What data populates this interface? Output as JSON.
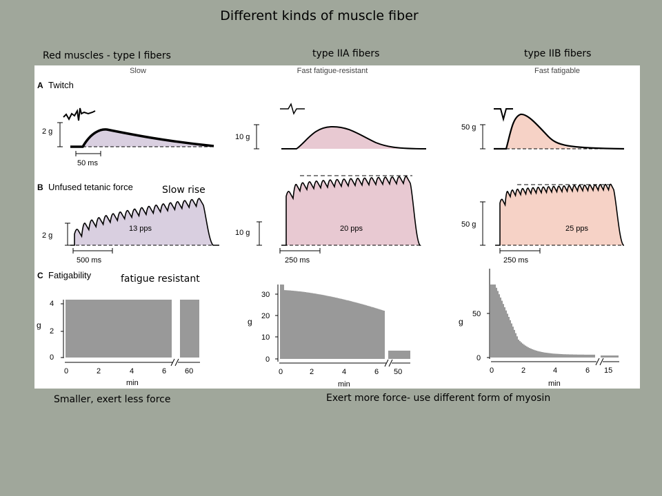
{
  "title": "Different kinds of muscle fiber",
  "headers": {
    "red": "Red muscles - type I fibers",
    "iia": "type IIA fibers",
    "iib": "type IIB fibers"
  },
  "figure": {
    "columns": [
      "Slow",
      "Fast fatigue-resistant",
      "Fast fatigable"
    ],
    "row_labels": [
      "A",
      "Twitch",
      "B",
      "Unfused tetanic force",
      "C",
      "Fatigability"
    ],
    "twitch_scales": [
      "2 g",
      "10 g",
      "50 g"
    ],
    "twitch_time": "50 ms",
    "tetanic_scales": [
      "2 g",
      "10 g",
      "50 g"
    ],
    "tetanic_rates": [
      "13 pps",
      "20 pps",
      "25 pps"
    ],
    "tetanic_times": [
      "500 ms",
      "250 ms",
      "250 ms"
    ],
    "fatigue": {
      "ylabel": "g",
      "xlabel": "min",
      "slow_y_ticks": [
        "4",
        "2",
        "0"
      ],
      "slow_y_extra": [
        "0"
      ],
      "iia_y_ticks": [
        "30",
        "20",
        "10",
        "0"
      ],
      "iib_y_ticks": [
        "50",
        "0"
      ],
      "x_ticks": [
        "0",
        "2",
        "4",
        "6"
      ],
      "slow_late": "60",
      "iia_late": "50",
      "iib_late": "15"
    }
  },
  "colors": {
    "slow_fill": "#d9cfe0",
    "iia_fill": "#e8c9d2",
    "iib_fill": "#f6d2c6"
  },
  "annotations": {
    "slow_rise": "Slow rise",
    "fatigue_resistant": "fatigue resistant",
    "smaller": "Smaller, exert less force",
    "exert_more": "Exert more force- use different form of myosin"
  }
}
